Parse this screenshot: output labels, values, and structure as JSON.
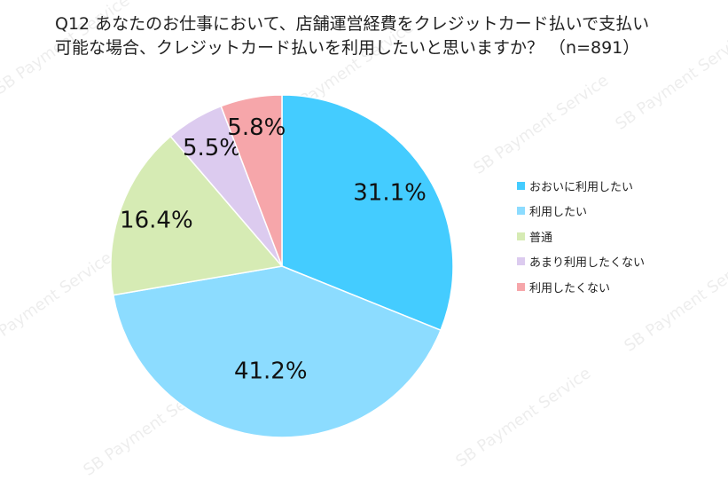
{
  "title_lines": [
    "Q12 あなたのお仕事において、店舗運営経費をクレジットカード払いで支払い",
    "可能な場合、クレジットカード払いを利用したいと思いますか？ （n=891）"
  ],
  "watermark": "SB Payment Service",
  "chart_data": {
    "type": "pie",
    "title": "Q12 あなたのお仕事において、店舗運営経費をクレジットカード払いで支払い可能な場合、クレジットカード払いを利用したいと思いますか？ （n=891）",
    "start": "12 o'clock, clockwise",
    "legend_position": "right",
    "slices": [
      {
        "label": "おおいに利用したい",
        "value": 31.1,
        "display": "31.1%",
        "color": "#44ccff"
      },
      {
        "label": "利用したい",
        "value": 41.2,
        "display": "41.2%",
        "color": "#8cdcff"
      },
      {
        "label": "普通",
        "value": 16.4,
        "display": "16.4%",
        "color": "#d6ebb4"
      },
      {
        "label": "あまり利用したくない",
        "value": 5.5,
        "display": "5.5%",
        "color": "#dccbef"
      },
      {
        "label": "利用したくない",
        "value": 5.8,
        "display": "5.8%",
        "color": "#f6a6aa"
      }
    ]
  }
}
